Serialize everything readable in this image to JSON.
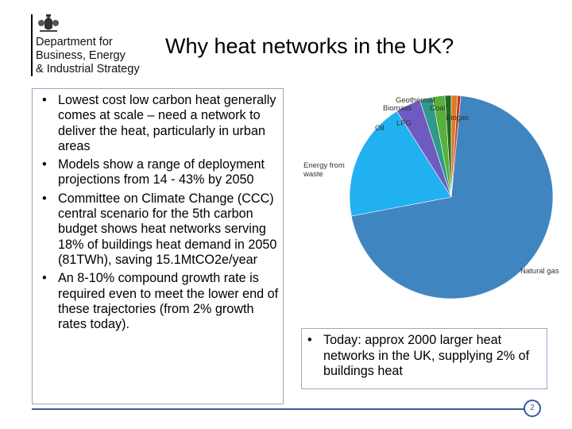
{
  "logo": {
    "line1": "Department for",
    "line2": "Business, Energy",
    "line3": "& Industrial Strategy",
    "crest_icon": "royal-coat-of-arms-icon"
  },
  "title": "Why heat networks in the UK?",
  "left_bullets": [
    "Lowest cost low carbon heat generally comes at scale – need a network to deliver the heat, particularly in urban areas",
    "Models show a range of deployment projections from 14 - 43% by 2050",
    "Committee on Climate Change (CCC) central scenario for the 5th carbon budget shows heat networks serving 18% of buildings heat demand in 2050 (81TWh), saving 15.1MtCO2e/year",
    "An 8-10% compound growth rate is required even to meet the lower end of these trajectories (from 2% growth rates today)."
  ],
  "bullet_char": "•",
  "right_bullet": "Today: approx 2000 larger heat networks in the UK, supplying 2% of buildings heat",
  "page_number": "2",
  "colors": {
    "accent": "#3a5aa0",
    "box_border": "#9aa7c7"
  },
  "chart_data": {
    "type": "pie",
    "title": "",
    "slices": [
      {
        "label": "Natural gas",
        "value": 70.5,
        "color": "#3f86c0"
      },
      {
        "label": "Energy from waste",
        "value": 19.0,
        "color": "#21b0f0"
      },
      {
        "label": "Oil",
        "value": 4.0,
        "color": "#6f5ac0"
      },
      {
        "label": "LPG",
        "value": 2.0,
        "color": "#2f9a8a"
      },
      {
        "label": "Biomass",
        "value": 2.0,
        "color": "#58b03c"
      },
      {
        "label": "Geothermal",
        "value": 1.0,
        "color": "#1d6b1f"
      },
      {
        "label": "Coal",
        "value": 1.0,
        "color": "#e07b20"
      },
      {
        "label": "Biogas",
        "value": 0.5,
        "color": "#c0392b"
      }
    ]
  }
}
